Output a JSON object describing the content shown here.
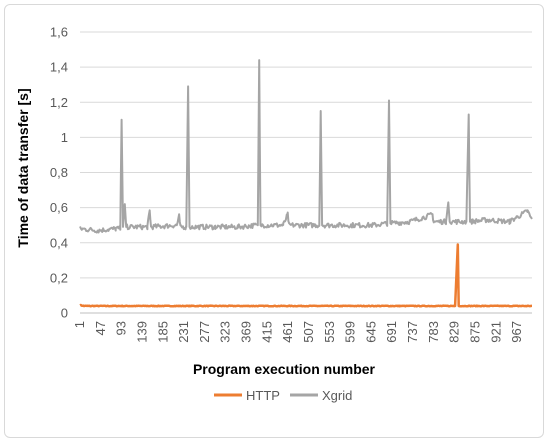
{
  "chart_data": {
    "type": "line",
    "title": "",
    "xlabel": "Program execution number",
    "ylabel": "Time of data transfer [s]",
    "ylim": [
      0,
      1.6
    ],
    "yticks": [
      "0",
      "0,2",
      "0,4",
      "0,6",
      "0,8",
      "1",
      "1,2",
      "1,4",
      "1,6"
    ],
    "xlim": [
      1,
      1000
    ],
    "xticks": [
      "1",
      "47",
      "93",
      "139",
      "185",
      "231",
      "277",
      "323",
      "369",
      "415",
      "461",
      "507",
      "553",
      "599",
      "645",
      "691",
      "737",
      "783",
      "829",
      "875",
      "921",
      "967"
    ],
    "grid": "horizontal",
    "legend": "bottom",
    "series": [
      {
        "name": "HTTP",
        "color": "#ED7D31",
        "baseline": 0.04,
        "points": [
          [
            1,
            0.045
          ],
          [
            10,
            0.04
          ],
          [
            830,
            0.04
          ],
          [
            836,
            0.39
          ],
          [
            838,
            0.04
          ],
          [
            1000,
            0.04
          ]
        ]
      },
      {
        "name": "Xgrid",
        "color": "#A5A5A5",
        "points": [
          [
            1,
            0.48
          ],
          [
            40,
            0.47
          ],
          [
            80,
            0.48
          ],
          [
            90,
            0.48
          ],
          [
            93,
            1.1
          ],
          [
            96,
            0.49
          ],
          [
            100,
            0.62
          ],
          [
            103,
            0.49
          ],
          [
            150,
            0.49
          ],
          [
            155,
            0.58
          ],
          [
            158,
            0.49
          ],
          [
            215,
            0.5
          ],
          [
            220,
            0.55
          ],
          [
            223,
            0.49
          ],
          [
            236,
            0.49
          ],
          [
            240,
            1.29
          ],
          [
            243,
            0.49
          ],
          [
            300,
            0.49
          ],
          [
            350,
            0.49
          ],
          [
            394,
            0.5
          ],
          [
            397,
            1.44
          ],
          [
            400,
            0.5
          ],
          [
            450,
            0.5
          ],
          [
            460,
            0.56
          ],
          [
            463,
            0.5
          ],
          [
            530,
            0.5
          ],
          [
            533,
            1.15
          ],
          [
            536,
            0.5
          ],
          [
            600,
            0.5
          ],
          [
            650,
            0.5
          ],
          [
            680,
            0.51
          ],
          [
            684,
            1.21
          ],
          [
            687,
            0.51
          ],
          [
            730,
            0.52
          ],
          [
            780,
            0.56
          ],
          [
            783,
            0.52
          ],
          [
            810,
            0.52
          ],
          [
            815,
            0.63
          ],
          [
            818,
            0.52
          ],
          [
            855,
            0.52
          ],
          [
            860,
            1.13
          ],
          [
            863,
            0.52
          ],
          [
            900,
            0.53
          ],
          [
            950,
            0.52
          ],
          [
            990,
            0.58
          ],
          [
            1000,
            0.53
          ]
        ]
      }
    ]
  }
}
